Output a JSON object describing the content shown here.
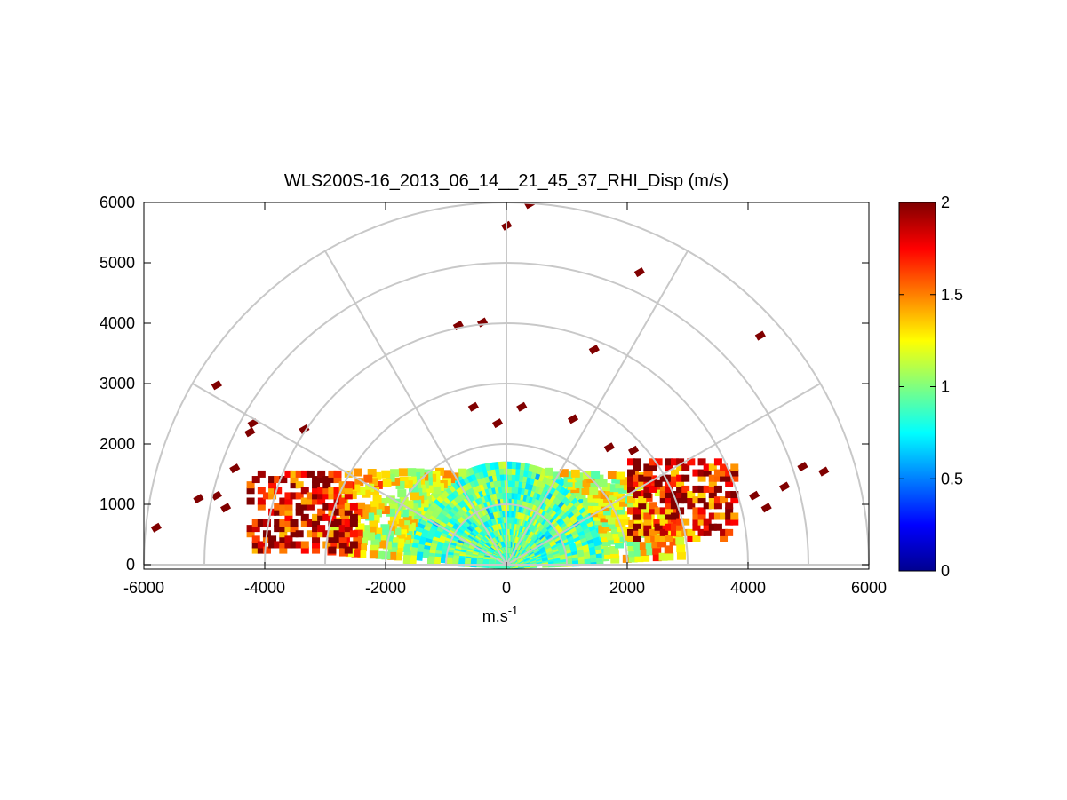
{
  "chart_data": {
    "type": "heatmap",
    "title": "WLS200S-16_2013_06_14__21_45_37_RHI_Disp (m/s)",
    "xlabel": "m.s",
    "xlabel_superscript": "-1",
    "ylabel": "",
    "xlim": [
      -6000,
      6000
    ],
    "ylim": [
      0,
      6000
    ],
    "x_ticks": [
      -6000,
      -4000,
      -2000,
      0,
      2000,
      4000,
      6000
    ],
    "y_ticks": [
      0,
      1000,
      2000,
      3000,
      4000,
      5000,
      6000
    ],
    "polar_grid": {
      "range_rings_m": [
        1000,
        2000,
        3000,
        4000,
        5000,
        6000
      ],
      "spokes_deg": [
        0,
        30,
        60,
        90,
        120,
        150,
        180
      ]
    },
    "colorbar": {
      "colormap": "jet",
      "range": [
        0,
        2
      ],
      "ticks": [
        0,
        0.5,
        1,
        1.5,
        2
      ]
    },
    "field_summary": {
      "dense_region": {
        "range_m": [
          0,
          1700
        ],
        "elevation_deg": [
          0,
          180
        ],
        "value_mean": 0.95
      },
      "left_edge_region": {
        "x_m": [
          -4300,
          -2500
        ],
        "y_m": [
          300,
          1600
        ],
        "value_mean": 1.8
      },
      "right_edge_region": {
        "x_m": [
          2000,
          3800
        ],
        "y_m": [
          500,
          1800
        ],
        "value_mean": 1.75
      }
    },
    "scattered_points": [
      {
        "x": 0,
        "y": 5620,
        "value": 2
      },
      {
        "x": 380,
        "y": 5980,
        "value": 2
      },
      {
        "x": 4200,
        "y": 3800,
        "value": 2
      },
      {
        "x": -4800,
        "y": 2980,
        "value": 2
      },
      {
        "x": -4200,
        "y": 2350,
        "value": 2
      },
      {
        "x": -4250,
        "y": 2200,
        "value": 2
      },
      {
        "x": -3350,
        "y": 2250,
        "value": 2
      },
      {
        "x": -800,
        "y": 3970,
        "value": 2
      },
      {
        "x": -400,
        "y": 4020,
        "value": 2
      },
      {
        "x": 1450,
        "y": 3570,
        "value": 2
      },
      {
        "x": 2200,
        "y": 4850,
        "value": 2
      },
      {
        "x": -550,
        "y": 2620,
        "value": 2
      },
      {
        "x": 250,
        "y": 2620,
        "value": 2
      },
      {
        "x": -150,
        "y": 2350,
        "value": 2
      },
      {
        "x": 1100,
        "y": 2420,
        "value": 2
      },
      {
        "x": 4900,
        "y": 1630,
        "value": 2
      },
      {
        "x": 4600,
        "y": 1300,
        "value": 2
      },
      {
        "x": 5250,
        "y": 1550,
        "value": 2
      },
      {
        "x": -5800,
        "y": 620,
        "value": 2
      },
      {
        "x": -5100,
        "y": 1100,
        "value": 2
      },
      {
        "x": -4500,
        "y": 1600,
        "value": 2
      },
      {
        "x": 1700,
        "y": 1950,
        "value": 2
      },
      {
        "x": 2100,
        "y": 1900,
        "value": 2
      },
      {
        "x": 4100,
        "y": 1150,
        "value": 2
      },
      {
        "x": 4300,
        "y": 950,
        "value": 2
      },
      {
        "x": -4800,
        "y": 1150,
        "value": 2
      },
      {
        "x": -4650,
        "y": 950,
        "value": 2
      }
    ]
  }
}
